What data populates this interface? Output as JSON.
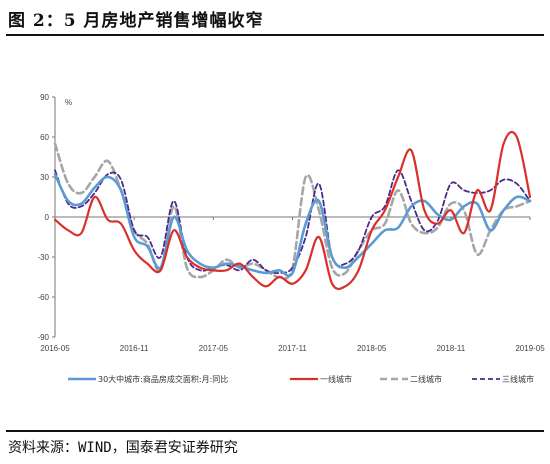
{
  "figure": {
    "title": "图 2：5 月房地产销售增幅收窄",
    "source": "资料来源：WIND，国泰君安证券研究"
  },
  "chart_data": {
    "type": "line",
    "unit_label": "%",
    "ylim": [
      -90,
      90
    ],
    "yticks": [
      -90,
      -60,
      -30,
      0,
      30,
      60,
      90
    ],
    "x_range": [
      "2016-05",
      "2019-05"
    ],
    "x_ticks": [
      "2016-05",
      "2016-11",
      "2017-05",
      "2017-11",
      "2018-05",
      "2018-11",
      "2019-05"
    ],
    "x_tick_index": [
      0,
      6,
      12,
      18,
      24,
      30,
      36
    ],
    "colors": {
      "series1": "#5b9bd5",
      "series2": "#d9302c",
      "series3": "#a6a6a6",
      "series4": "#4b2a8c"
    },
    "series": [
      {
        "name": "30大中城市:商品房成交面积:月:同比",
        "values": [
          32,
          12,
          10,
          22,
          30,
          20,
          -15,
          -22,
          -38,
          0,
          -25,
          -35,
          -38,
          -35,
          -37,
          -40,
          -42,
          -40,
          -42,
          -5,
          12,
          -30,
          -38,
          -30,
          -20,
          -10,
          -8,
          8,
          12,
          2,
          -2,
          8,
          10,
          -10,
          5,
          15,
          12
        ]
      },
      {
        "name": "一线城市",
        "values": [
          -2,
          -10,
          -12,
          15,
          -2,
          -5,
          -25,
          -35,
          -40,
          -10,
          -30,
          -38,
          -40,
          -40,
          -35,
          -45,
          -52,
          -45,
          -50,
          -40,
          -15,
          -50,
          -52,
          -40,
          -10,
          5,
          30,
          50,
          5,
          -5,
          5,
          -12,
          20,
          5,
          55,
          60,
          15
        ]
      },
      {
        "name": "二线城市",
        "values": [
          55,
          25,
          18,
          30,
          42,
          20,
          -10,
          -20,
          -40,
          8,
          -38,
          -45,
          -40,
          -32,
          -38,
          -35,
          -40,
          -45,
          -38,
          30,
          5,
          -38,
          -42,
          -25,
          -10,
          -5,
          20,
          -5,
          -12,
          -8,
          10,
          5,
          -28,
          -10,
          5,
          8,
          12
        ]
      },
      {
        "name": "三线城市",
        "values": [
          35,
          10,
          8,
          18,
          32,
          28,
          -10,
          -15,
          -30,
          12,
          -30,
          -40,
          -38,
          -36,
          -40,
          -32,
          -40,
          -42,
          -38,
          -15,
          25,
          -30,
          -35,
          -25,
          0,
          8,
          35,
          12,
          -10,
          -3,
          25,
          20,
          18,
          20,
          28,
          25,
          12
        ]
      }
    ]
  }
}
